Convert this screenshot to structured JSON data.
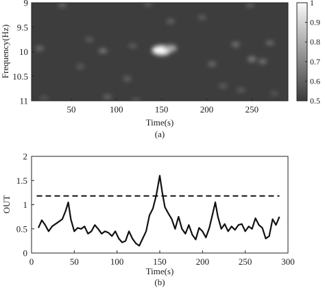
{
  "chart_data": [
    {
      "type": "heatmap",
      "panel_label": "(a)",
      "xlabel": "Time(s)",
      "ylabel": "Frequency(Hz)",
      "xticks": [
        50,
        100,
        150,
        200,
        250
      ],
      "xlim": [
        6,
        290
      ],
      "yticks": [
        9,
        9.5,
        10,
        10.5,
        11
      ],
      "ylim": [
        9,
        11
      ],
      "y_reversed": true,
      "colorbar": {
        "ticks": [
          0.5,
          0.6,
          0.7,
          0.8,
          0.9,
          1
        ],
        "tick_labels": [
          "0.5",
          "0.6",
          "0.7",
          "0.8",
          "0.9",
          "1"
        ],
        "range": [
          0.5,
          1
        ],
        "colormap": "gray"
      },
      "background_value": 0.52,
      "blobs": [
        {
          "t": 150,
          "f": 9.97,
          "value": 1.0
        },
        {
          "t": 160,
          "f": 9.93,
          "value": 0.8
        },
        {
          "t": 85,
          "f": 9.98,
          "value": 0.68
        },
        {
          "t": 15,
          "f": 9.93,
          "value": 0.64
        },
        {
          "t": 40,
          "f": 9.05,
          "value": 0.62
        },
        {
          "t": 70,
          "f": 9.75,
          "value": 0.6
        },
        {
          "t": 118,
          "f": 9.88,
          "value": 0.6
        },
        {
          "t": 135,
          "f": 9.02,
          "value": 0.6
        },
        {
          "t": 160,
          "f": 9.38,
          "value": 0.62
        },
        {
          "t": 112,
          "f": 10.55,
          "value": 0.62
        },
        {
          "t": 122,
          "f": 11.0,
          "value": 0.6
        },
        {
          "t": 90,
          "f": 10.92,
          "value": 0.62
        },
        {
          "t": 60,
          "f": 10.3,
          "value": 0.6
        },
        {
          "t": 232,
          "f": 9.85,
          "value": 0.66
        },
        {
          "t": 250,
          "f": 10.15,
          "value": 0.7
        },
        {
          "t": 262,
          "f": 10.2,
          "value": 0.66
        },
        {
          "t": 206,
          "f": 10.25,
          "value": 0.64
        },
        {
          "t": 218,
          "f": 10.7,
          "value": 0.6
        },
        {
          "t": 270,
          "f": 9.82,
          "value": 0.64
        },
        {
          "t": 238,
          "f": 10.78,
          "value": 0.6
        },
        {
          "t": 248,
          "f": 9.05,
          "value": 0.6
        },
        {
          "t": 195,
          "f": 9.3,
          "value": 0.6
        },
        {
          "t": 275,
          "f": 10.85,
          "value": 0.58
        },
        {
          "t": 20,
          "f": 10.95,
          "value": 0.58
        }
      ]
    },
    {
      "type": "line",
      "panel_label": "(b)",
      "xlabel": "Time(s)",
      "ylabel": "OUT",
      "xlim": [
        0,
        300
      ],
      "ylim": [
        0,
        2
      ],
      "xticks": [
        0,
        50,
        100,
        150,
        200,
        250,
        300
      ],
      "yticks": [
        0,
        0.5,
        1,
        1.5,
        2
      ],
      "ytick_labels": [
        "0",
        "0.5",
        "1",
        "1.5",
        "2"
      ],
      "threshold": {
        "y": 1.18,
        "x": [
          6,
          290
        ],
        "style": "dashed"
      },
      "series": [
        {
          "x": [
            8,
            12,
            16,
            20,
            24,
            28,
            32,
            36,
            40,
            43,
            46,
            50,
            54,
            58,
            62,
            66,
            70,
            74,
            78,
            82,
            86,
            90,
            94,
            98,
            102,
            106,
            110,
            114,
            118,
            122,
            126,
            130,
            134,
            138,
            142,
            146,
            150,
            153,
            156,
            160,
            164,
            168,
            172,
            176,
            180,
            184,
            188,
            192,
            196,
            200,
            204,
            208,
            212,
            215,
            218,
            222,
            226,
            230,
            234,
            238,
            242,
            246,
            250,
            254,
            258,
            262,
            266,
            270,
            274,
            278,
            282,
            286,
            290
          ],
          "y": [
            0.52,
            0.68,
            0.58,
            0.45,
            0.55,
            0.6,
            0.65,
            0.7,
            0.88,
            1.05,
            0.7,
            0.45,
            0.52,
            0.5,
            0.55,
            0.4,
            0.45,
            0.58,
            0.5,
            0.4,
            0.45,
            0.42,
            0.35,
            0.45,
            0.3,
            0.22,
            0.25,
            0.45,
            0.3,
            0.2,
            0.15,
            0.3,
            0.45,
            0.78,
            0.92,
            1.2,
            1.6,
            1.25,
            0.95,
            0.82,
            0.7,
            0.5,
            0.75,
            0.5,
            0.4,
            0.58,
            0.38,
            0.28,
            0.52,
            0.45,
            0.32,
            0.52,
            0.82,
            1.05,
            0.75,
            0.5,
            0.6,
            0.45,
            0.55,
            0.48,
            0.58,
            0.6,
            0.45,
            0.55,
            0.5,
            0.72,
            0.58,
            0.52,
            0.3,
            0.35,
            0.7,
            0.58,
            0.75
          ]
        }
      ]
    }
  ]
}
